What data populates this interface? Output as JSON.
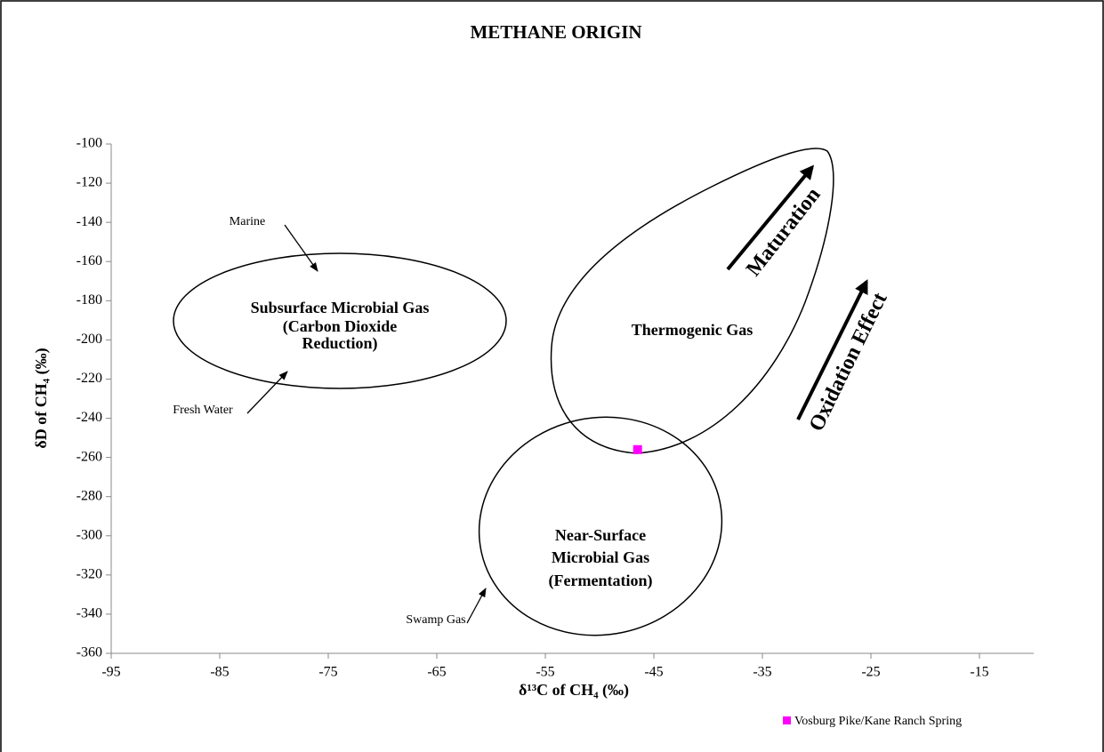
{
  "chart_data": {
    "type": "scatter",
    "title": "METHANE ORIGIN",
    "x_label": "δ¹³C of CH₄ (‰)",
    "y_label": "δD of CH₄ (‰)",
    "xlim": [
      -95,
      -10
    ],
    "xticks": [
      -95,
      -85,
      -75,
      -65,
      -55,
      -45,
      -35,
      -25,
      -15
    ],
    "ylim": [
      -360,
      -100
    ],
    "yticks": [
      -100,
      -120,
      -140,
      -160,
      -180,
      -200,
      -220,
      -240,
      -260,
      -280,
      -300,
      -320,
      -340,
      -360
    ],
    "series": [
      {
        "name": "Vosburg Pike/Kane Ranch Spring",
        "color": "#ff00ff",
        "x": [
          -46.5
        ],
        "values": [
          -256
        ]
      }
    ],
    "legend": "bottom-right",
    "annotations": [
      {
        "lines": [
          "Subsurface Microbial Gas",
          "(Carbon Dioxide",
          "Reduction)"
        ]
      },
      {
        "lines": [
          "Thermogenic Gas"
        ]
      },
      {
        "lines": [
          "Near-Surface",
          "Microbial Gas",
          "(Fermentation)"
        ]
      },
      {
        "lines": [
          "Marine"
        ]
      },
      {
        "lines": [
          "Fresh Water"
        ]
      },
      {
        "lines": [
          "Swamp Gas"
        ]
      },
      {
        "lines": [
          "Maturation"
        ]
      },
      {
        "lines": [
          "Oxidation Effect"
        ]
      }
    ]
  }
}
